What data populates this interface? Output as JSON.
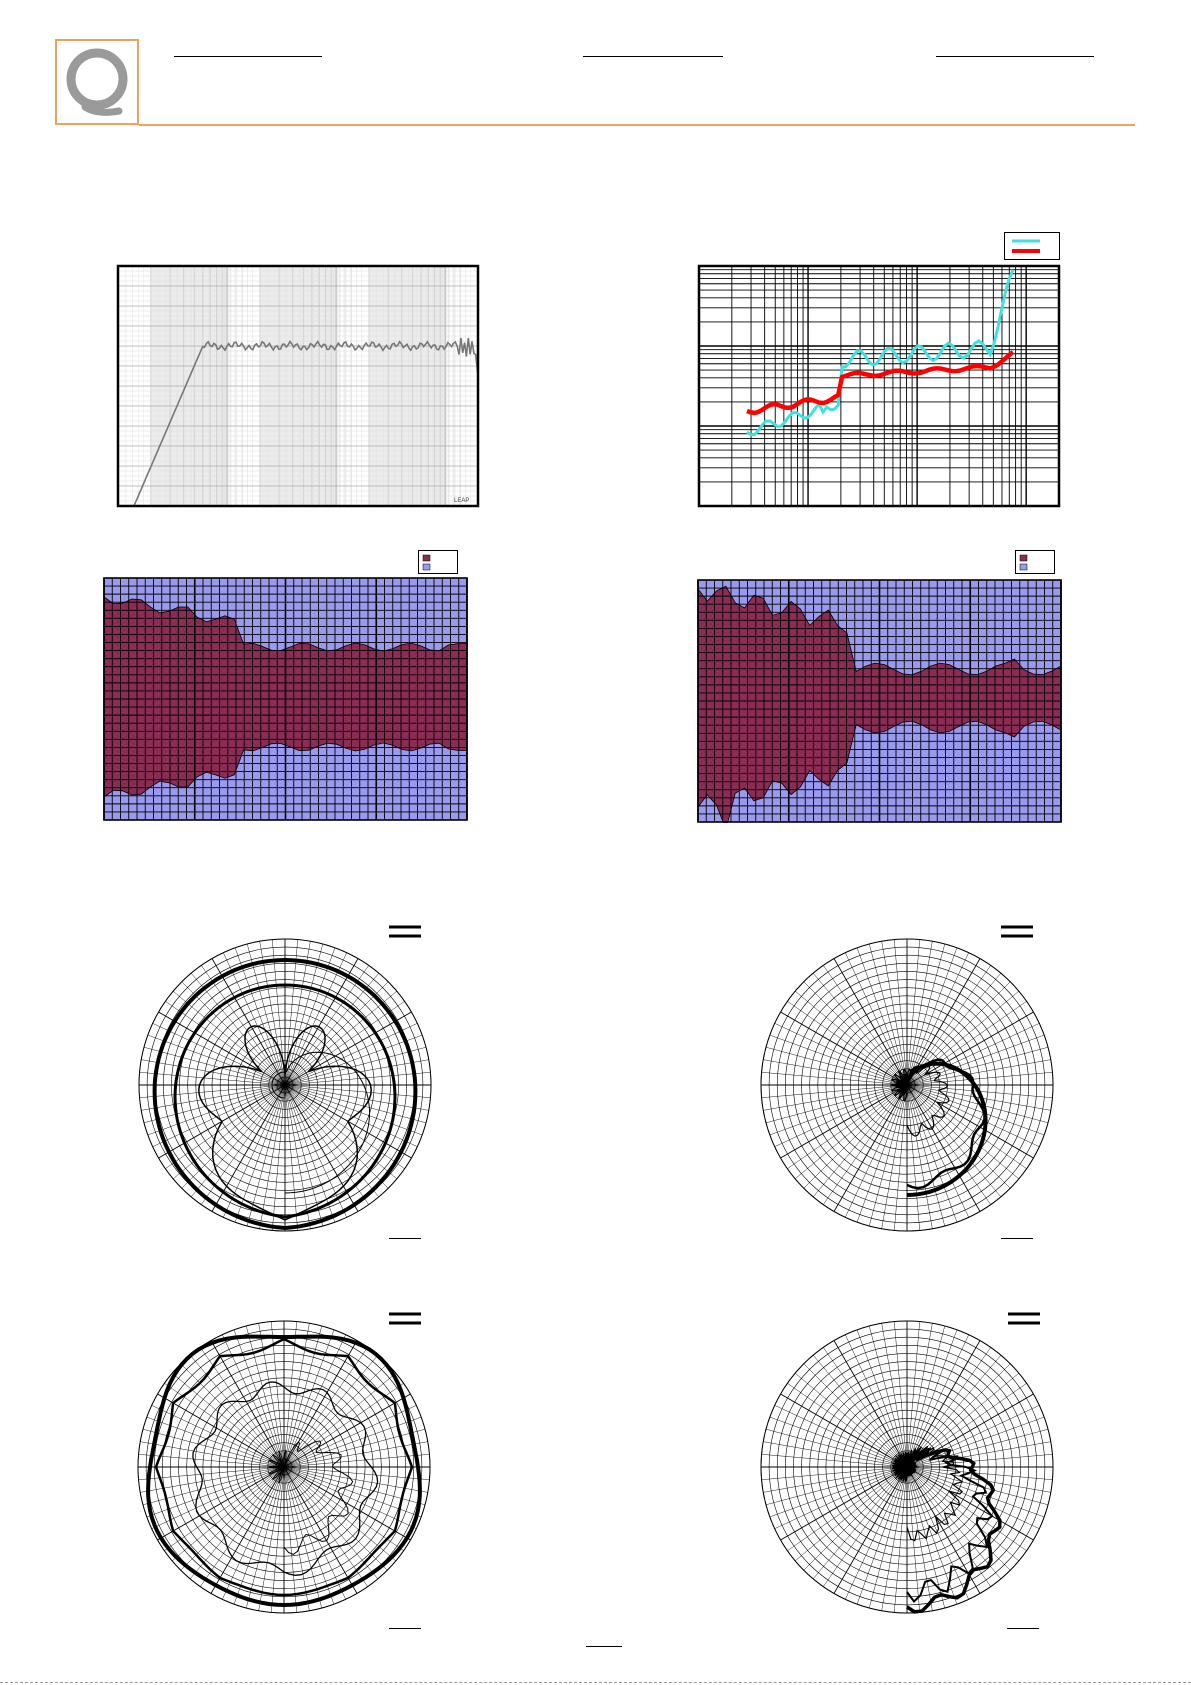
{
  "header": {
    "logo_letter": "Q",
    "brand_color": "#f0a060",
    "logo_color": "#9a9a9a"
  },
  "charts": {
    "frequency_response": {
      "type": "line",
      "line_color": "#777777",
      "grid": true,
      "watermark_text": "LEAP"
    },
    "distortion": {
      "type": "line",
      "grid": true,
      "legend_position": "top-right",
      "series_colors": [
        "#40e0e0",
        "#ff0000"
      ]
    },
    "beamwidth_horizontal": {
      "type": "area",
      "legend_position": "top-right",
      "series_colors": [
        "#8b2c55",
        "#9999ee"
      ]
    },
    "beamwidth_vertical": {
      "type": "area",
      "legend_position": "top-right",
      "series_colors": [
        "#8b2c55",
        "#9999ee"
      ]
    },
    "polars": [
      {
        "name": "polar-top-left",
        "type": "polar"
      },
      {
        "name": "polar-top-right",
        "type": "polar"
      },
      {
        "name": "polar-bottom-left",
        "type": "polar"
      },
      {
        "name": "polar-bottom-right",
        "type": "polar"
      }
    ]
  }
}
